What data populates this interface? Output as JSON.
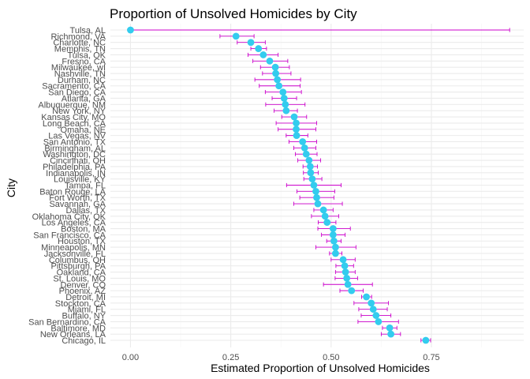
{
  "chart_data": {
    "type": "scatter",
    "title": "Proportion of Unsolved Homicides by City",
    "xlabel": "Estimated Proportion of Unsolved Homicides",
    "ylabel": "City",
    "xlim": [
      -0.05,
      0.98
    ],
    "x_ticks": [
      0.0,
      0.25,
      0.5,
      0.75
    ],
    "x_tick_labels": [
      "0.00",
      "0.25",
      "0.50",
      "0.75"
    ],
    "grid": true,
    "colors": {
      "point": "#33ccee",
      "errorbar": "#cc00cc",
      "grid_major": "#ebebeb",
      "grid_minor": "#f5f5f5"
    },
    "categories": [
      "Tulsa, AL",
      "Richmond, VA",
      "Charlotte, NC",
      "Memphis, TN",
      "Tulsa, OK",
      "Fresno, CA",
      "Milwaukee, wI",
      "Nashville, TN",
      "Durham, NC",
      "Sacramento, CA",
      "San Diego, CA",
      "Atlanta, GA",
      "Albuquerque, NM",
      "New York, NY",
      "Kansas City, MO",
      "Long Beach, CA",
      "Omaha, NE",
      "Las Vegas, NV",
      "San Antonio, TX",
      "Birmingham, AL",
      "Washington, DC",
      "Cincinnati, OH",
      "Philadelphia, PA",
      "Indianapolis, IN",
      "Louisville, KY",
      "Tampa, FL",
      "Baton Rouge, LA",
      "Fort Worth, TX",
      "Savannah, GA",
      "Dallas, TX",
      "Oklahoma City, OK",
      "Los Angeles, CA",
      "Boston, MA",
      "San Francisco, CA",
      "Houston, TX",
      "Minneapolis, MN",
      "Jacksonville, FL",
      "Columbus, OH",
      "Pittsburgh, PA",
      "Oakland, CA",
      "St. Louis, MO",
      "Denver, CO",
      "Phoenix, AZ",
      "Detroit, MI",
      "Stockton, CA",
      "Miami, FL",
      "Buffalo, NY",
      "San Bernardino, CA",
      "Baltimore, MD",
      "New Orleans, LA",
      "Chicago, IL"
    ],
    "estimate": [
      0.0,
      0.263,
      0.3,
      0.319,
      0.331,
      0.347,
      0.361,
      0.362,
      0.366,
      0.37,
      0.38,
      0.383,
      0.386,
      0.388,
      0.408,
      0.413,
      0.413,
      0.414,
      0.429,
      0.434,
      0.438,
      0.445,
      0.448,
      0.449,
      0.453,
      0.457,
      0.462,
      0.464,
      0.467,
      0.481,
      0.485,
      0.49,
      0.505,
      0.505,
      0.507,
      0.511,
      0.511,
      0.53,
      0.534,
      0.536,
      0.539,
      0.542,
      0.551,
      0.588,
      0.6,
      0.605,
      0.612,
      0.618,
      0.646,
      0.649,
      0.736
    ],
    "conf_low": [
      0.0,
      0.223,
      0.266,
      0.3,
      0.293,
      0.305,
      0.324,
      0.329,
      0.31,
      0.321,
      0.336,
      0.353,
      0.337,
      0.358,
      0.377,
      0.363,
      0.368,
      0.388,
      0.395,
      0.407,
      0.411,
      0.417,
      0.43,
      0.431,
      0.432,
      0.389,
      0.415,
      0.422,
      0.407,
      0.457,
      0.451,
      0.468,
      0.467,
      0.476,
      0.489,
      0.462,
      0.496,
      0.5,
      0.512,
      0.511,
      0.51,
      0.481,
      0.522,
      0.576,
      0.557,
      0.569,
      0.575,
      0.567,
      0.628,
      0.625,
      0.724
    ],
    "conf_high": [
      0.945,
      0.308,
      0.336,
      0.339,
      0.368,
      0.392,
      0.396,
      0.4,
      0.424,
      0.423,
      0.426,
      0.414,
      0.435,
      0.416,
      0.439,
      0.464,
      0.462,
      0.442,
      0.464,
      0.462,
      0.465,
      0.474,
      0.466,
      0.468,
      0.477,
      0.525,
      0.509,
      0.507,
      0.528,
      0.505,
      0.519,
      0.512,
      0.548,
      0.535,
      0.525,
      0.562,
      0.527,
      0.56,
      0.556,
      0.56,
      0.566,
      0.603,
      0.58,
      0.601,
      0.643,
      0.64,
      0.649,
      0.668,
      0.664,
      0.673,
      0.748
    ]
  }
}
